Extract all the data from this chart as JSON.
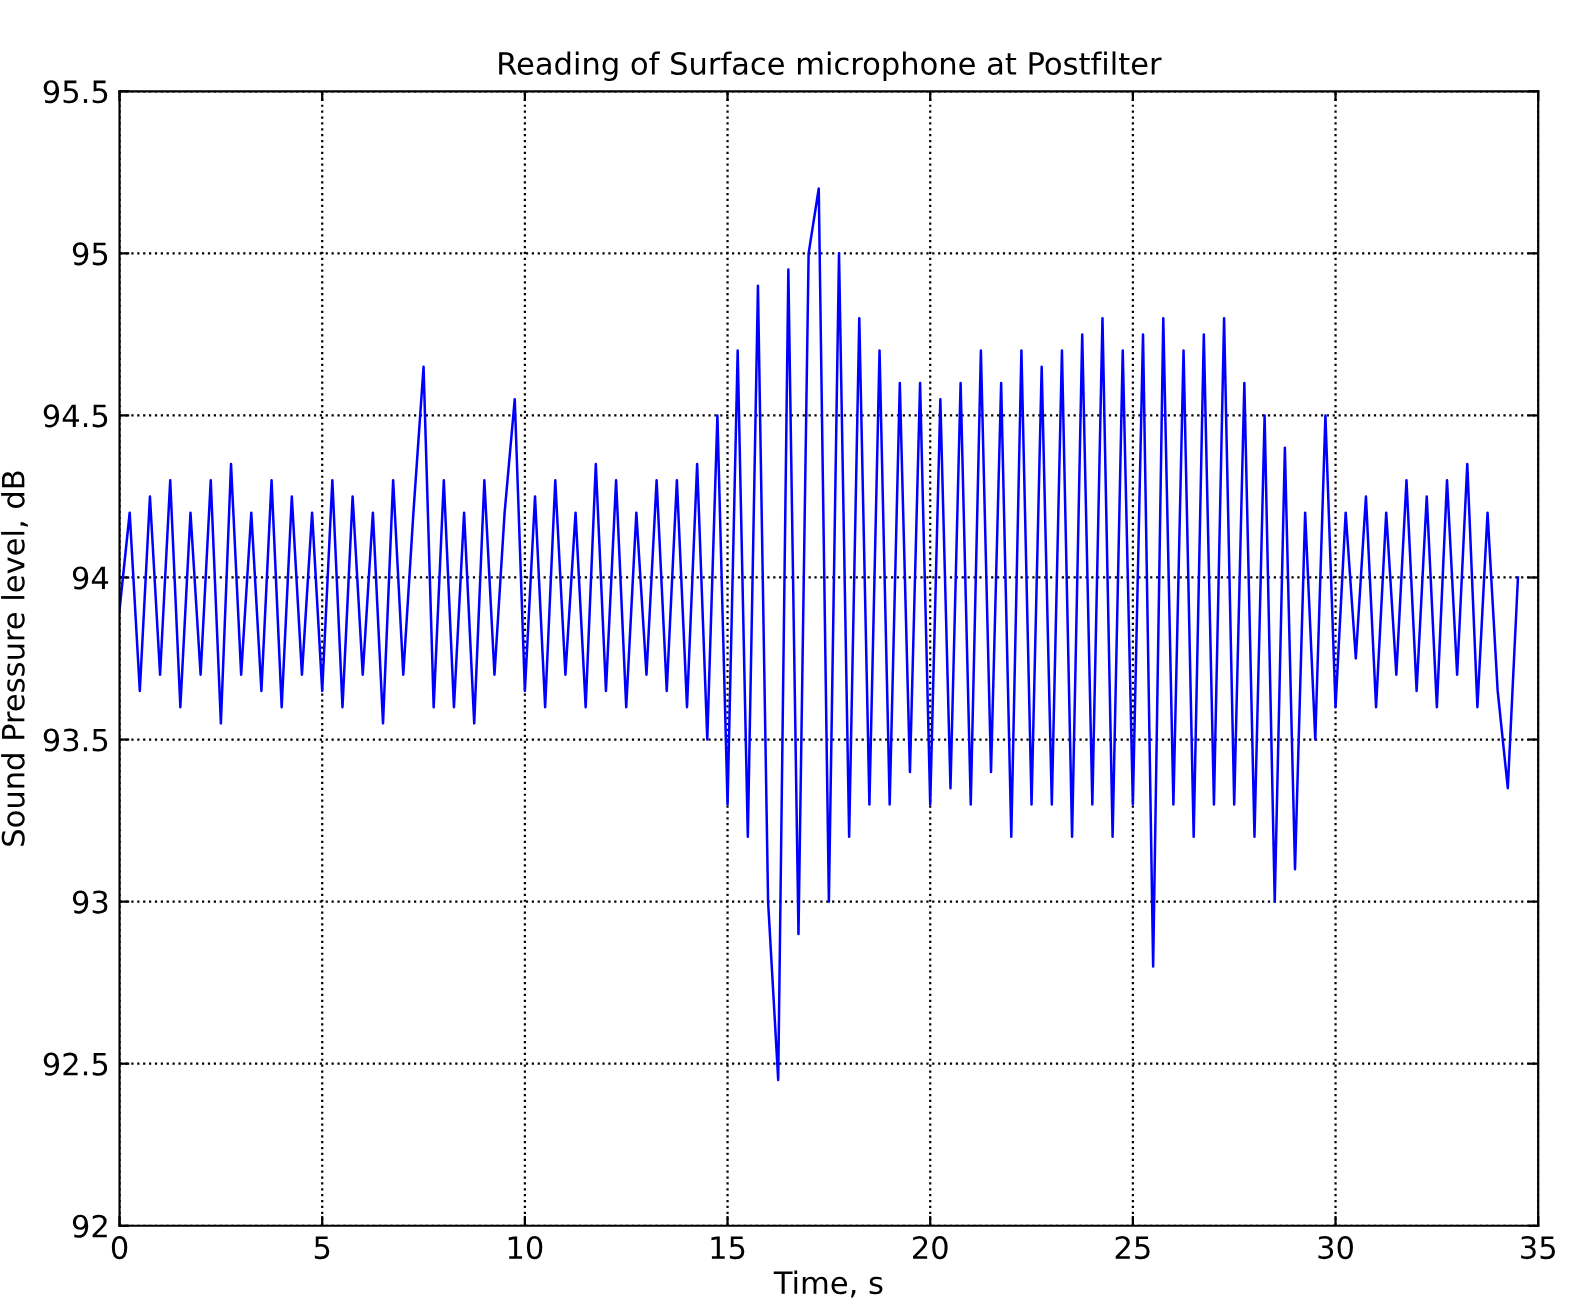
{
  "chart_data": {
    "type": "line",
    "title": "Reading of Surface microphone at Postfilter",
    "xlabel": "Time, s",
    "ylabel": "Sound Pressure level, dB",
    "xlim": [
      0,
      35
    ],
    "xticks": [
      0,
      5,
      10,
      15,
      20,
      25,
      30,
      35
    ],
    "ylim": [
      92,
      95.5
    ],
    "yticks": [
      92,
      92.5,
      93,
      93.5,
      94,
      94.5,
      95,
      95.5
    ],
    "grid": true,
    "line_style": "solid",
    "marker": "none",
    "series": [
      {
        "color": "#0000ff",
        "x": [
          0,
          0.25,
          0.5,
          0.75,
          1,
          1.25,
          1.5,
          1.75,
          2,
          2.25,
          2.5,
          2.75,
          3,
          3.25,
          3.5,
          3.75,
          4,
          4.25,
          4.5,
          4.75,
          5,
          5.25,
          5.5,
          5.75,
          6,
          6.25,
          6.5,
          6.75,
          7,
          7.25,
          7.5,
          7.75,
          8,
          8.25,
          8.5,
          8.75,
          9,
          9.25,
          9.5,
          9.75,
          10,
          10.25,
          10.5,
          10.75,
          11,
          11.25,
          11.5,
          11.75,
          12,
          12.25,
          12.5,
          12.75,
          13,
          13.25,
          13.5,
          13.75,
          14,
          14.25,
          14.5,
          14.75,
          15,
          15.25,
          15.5,
          15.75,
          16,
          16.25,
          16.5,
          16.75,
          17,
          17.25,
          17.5,
          17.75,
          18,
          18.25,
          18.5,
          18.75,
          19,
          19.25,
          19.5,
          19.75,
          20,
          20.25,
          20.5,
          20.75,
          21,
          21.25,
          21.5,
          21.75,
          22,
          22.25,
          22.5,
          22.75,
          23,
          23.25,
          23.5,
          23.75,
          24,
          24.25,
          24.5,
          24.75,
          25,
          25.25,
          25.5,
          25.75,
          26,
          26.25,
          26.5,
          26.75,
          27,
          27.25,
          27.5,
          27.75,
          28,
          28.25,
          28.5,
          28.75,
          29,
          29.25,
          29.5,
          29.75,
          30,
          30.25,
          30.5,
          30.75,
          31,
          31.25,
          31.5,
          31.75,
          32,
          32.25,
          32.5,
          32.75,
          33,
          33.25,
          33.5,
          33.75,
          34,
          34.25,
          34.5
        ],
        "values": [
          93.9,
          94.2,
          93.65,
          94.25,
          93.7,
          94.3,
          93.6,
          94.2,
          93.7,
          94.3,
          93.55,
          94.35,
          93.7,
          94.2,
          93.65,
          94.3,
          93.6,
          94.25,
          93.7,
          94.2,
          93.65,
          94.3,
          93.6,
          94.25,
          93.7,
          94.2,
          93.55,
          94.3,
          93.7,
          94.2,
          94.65,
          93.6,
          94.3,
          93.6,
          94.2,
          93.55,
          94.3,
          93.7,
          94.2,
          94.55,
          93.65,
          94.25,
          93.6,
          94.3,
          93.7,
          94.2,
          93.6,
          94.35,
          93.65,
          94.3,
          93.6,
          94.2,
          93.7,
          94.3,
          93.65,
          94.3,
          93.6,
          94.35,
          93.5,
          94.5,
          93.3,
          94.7,
          93.2,
          94.9,
          93.0,
          92.45,
          94.95,
          92.9,
          95.0,
          95.2,
          93.0,
          95.0,
          93.2,
          94.8,
          93.3,
          94.7,
          93.3,
          94.6,
          93.4,
          94.6,
          93.3,
          94.55,
          93.35,
          94.6,
          93.3,
          94.7,
          93.4,
          94.6,
          93.2,
          94.7,
          93.3,
          94.65,
          93.3,
          94.7,
          93.2,
          94.75,
          93.3,
          94.8,
          93.2,
          94.7,
          93.3,
          94.75,
          92.8,
          94.8,
          93.3,
          94.7,
          93.2,
          94.75,
          93.3,
          94.8,
          93.3,
          94.6,
          93.2,
          94.5,
          93.0,
          94.4,
          93.1,
          94.2,
          93.5,
          94.5,
          93.6,
          94.2,
          93.75,
          94.25,
          93.6,
          94.2,
          93.7,
          94.3,
          93.65,
          94.25,
          93.6,
          94.3,
          93.7,
          94.35,
          93.6,
          94.2,
          93.65,
          93.35,
          94.0
        ]
      }
    ]
  }
}
